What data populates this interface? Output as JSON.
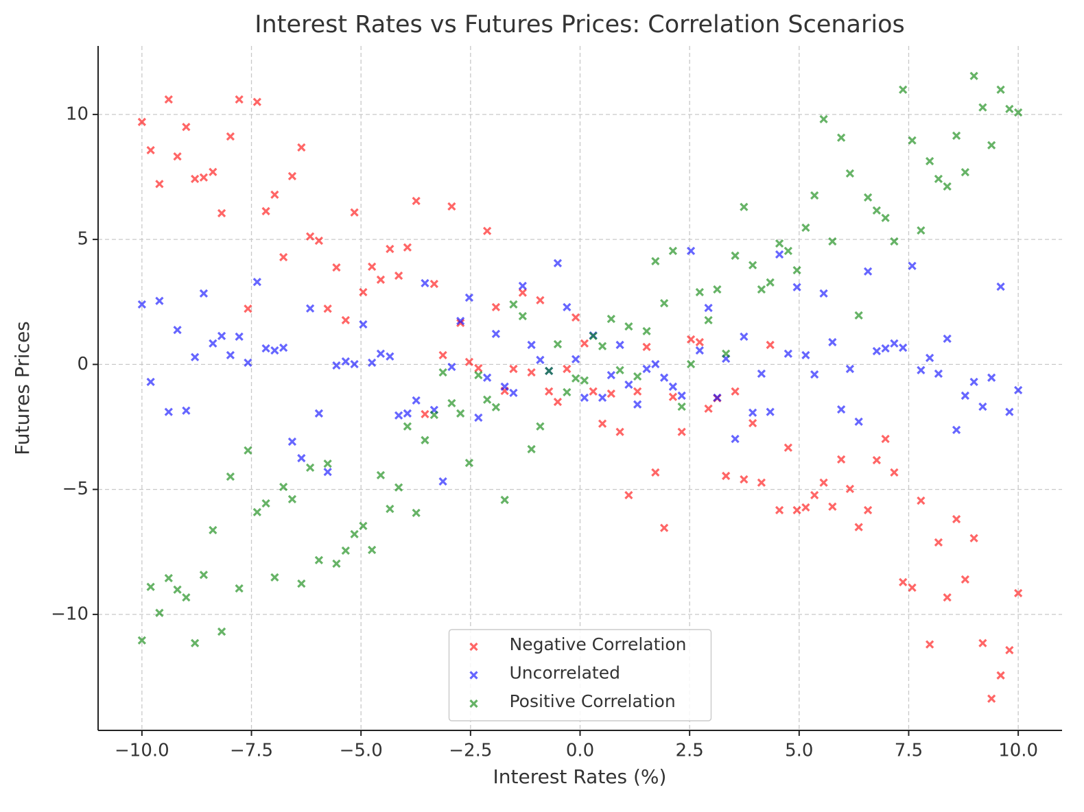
{
  "chart_data": {
    "type": "scatter",
    "title": "Interest Rates vs Futures Prices: Correlation Scenarios",
    "x_label": "Interest Rates (%)",
    "y_label": "Futures Prices",
    "x": [
      -10,
      -9.8,
      -9.6,
      -9.39,
      -9.19,
      -8.99,
      -8.79,
      -8.59,
      -8.38,
      -8.18,
      -7.98,
      -7.78,
      -7.58,
      -7.37,
      -7.17,
      -6.97,
      -6.77,
      -6.57,
      -6.36,
      -6.16,
      -5.96,
      -5.76,
      -5.56,
      -5.35,
      -5.15,
      -4.95,
      -4.75,
      -4.55,
      -4.34,
      -4.14,
      -3.94,
      -3.74,
      -3.54,
      -3.33,
      -3.13,
      -2.93,
      -2.73,
      -2.53,
      -2.32,
      -2.12,
      -1.92,
      -1.72,
      -1.52,
      -1.31,
      -1.11,
      -0.91,
      -0.71,
      -0.51,
      -0.3,
      -0.1,
      0.1,
      0.3,
      0.51,
      0.71,
      0.91,
      1.11,
      1.31,
      1.52,
      1.72,
      1.92,
      2.12,
      2.32,
      2.53,
      2.73,
      2.93,
      3.13,
      3.33,
      3.54,
      3.74,
      3.94,
      4.14,
      4.34,
      4.55,
      4.75,
      4.95,
      5.15,
      5.35,
      5.56,
      5.76,
      5.96,
      6.16,
      6.36,
      6.57,
      6.77,
      6.97,
      7.17,
      7.37,
      7.58,
      7.78,
      7.98,
      8.18,
      8.38,
      8.59,
      8.79,
      8.99,
      9.19,
      9.39,
      9.6,
      9.8,
      10
    ],
    "series": [
      {
        "name": "Negative Correlation",
        "color": "red",
        "values": [
          9.7,
          8.57,
          7.22,
          10.6,
          8.32,
          9.5,
          7.42,
          7.48,
          7.7,
          6.05,
          9.12,
          10.6,
          2.23,
          10.5,
          6.13,
          6.79,
          4.29,
          7.53,
          8.68,
          5.12,
          4.95,
          2.23,
          3.88,
          1.77,
          6.08,
          2.89,
          3.91,
          3.39,
          4.62,
          3.55,
          4.68,
          6.54,
          -1.99,
          3.22,
          0.37,
          6.32,
          1.66,
          0.1,
          -0.15,
          5.34,
          2.29,
          -1.06,
          -0.18,
          2.87,
          -0.32,
          2.57,
          -1.08,
          -1.5,
          -0.18,
          1.88,
          0.84,
          -1.08,
          -2.37,
          -1.17,
          -2.7,
          -5.23,
          -1.08,
          0.7,
          -4.32,
          -6.54,
          -1.3,
          -2.7,
          1.0,
          0.89,
          -1.77,
          -1.35,
          -4.46,
          -1.08,
          -4.6,
          -2.35,
          -4.73,
          0.78,
          -5.83,
          -3.33,
          -5.83,
          -5.72,
          -5.23,
          -4.73,
          -5.69,
          -3.8,
          -4.98,
          -6.51,
          -5.83,
          -3.83,
          -2.98,
          -4.32,
          -8.71,
          -8.93,
          -5.45,
          -11.2,
          -7.12,
          -9.32,
          -6.19,
          -8.6,
          -6.95,
          -11.15,
          -13.37,
          -12.44,
          -11.43,
          -9.15
        ]
      },
      {
        "name": "Uncorrelated",
        "color": "blue",
        "values": [
          2.4,
          -0.7,
          2.54,
          -1.9,
          1.38,
          -1.85,
          0.29,
          2.84,
          0.84,
          1.14,
          0.37,
          1.11,
          0.07,
          3.3,
          0.64,
          0.56,
          0.67,
          -3.09,
          -3.75,
          2.24,
          -1.96,
          -4.3,
          -0.04,
          0.12,
          0.01,
          1.6,
          0.07,
          0.43,
          0.32,
          -2.04,
          -1.96,
          -1.44,
          3.25,
          -1.82,
          -4.68,
          -0.1,
          1.74,
          2.67,
          -2.13,
          -0.53,
          1.22,
          -0.89,
          -1.14,
          3.14,
          0.78,
          0.18,
          -0.26,
          4.05,
          2.29,
          0.21,
          -1.33,
          1.16,
          -1.33,
          -0.43,
          0.78,
          -0.81,
          -1.6,
          -0.18,
          0.01,
          -0.53,
          -0.89,
          -1.25,
          4.54,
          0.56,
          2.26,
          -1.33,
          0.23,
          -2.98,
          1.11,
          -1.93,
          -0.37,
          -1.9,
          4.4,
          0.43,
          3.09,
          0.37,
          -0.4,
          2.84,
          0.89,
          -1.8,
          -0.18,
          -2.29,
          3.72,
          0.53,
          0.64,
          0.84,
          0.67,
          3.94,
          -0.23,
          0.26,
          -0.37,
          1.03,
          -2.62,
          -1.25,
          -0.7,
          -1.69,
          -0.53,
          3.11,
          -1.9,
          -1.03
        ]
      },
      {
        "name": "Positive Correlation",
        "color": "green",
        "values": [
          -11.04,
          -8.9,
          -9.94,
          -8.55,
          -9.01,
          -9.32,
          -11.15,
          -8.42,
          -6.63,
          -10.69,
          -4.49,
          -8.96,
          -3.44,
          -5.91,
          -5.56,
          -8.52,
          -4.9,
          -5.39,
          -8.77,
          -4.13,
          -7.83,
          -3.97,
          -7.97,
          -7.45,
          -6.79,
          -6.46,
          -7.42,
          -4.43,
          -5.78,
          -4.92,
          -2.48,
          -5.94,
          -3.03,
          -2.02,
          -0.32,
          -1.55,
          -1.96,
          -3.94,
          -0.43,
          -1.41,
          -1.71,
          -5.42,
          2.4,
          1.93,
          -3.39,
          -2.48,
          -0.26,
          0.81,
          -1.11,
          -0.56,
          -0.64,
          1.14,
          0.73,
          1.82,
          -0.23,
          1.52,
          -0.48,
          1.33,
          4.13,
          2.45,
          4.54,
          -1.69,
          0.01,
          2.89,
          1.77,
          3.0,
          0.43,
          4.35,
          6.3,
          3.97,
          3.0,
          3.28,
          4.84,
          4.54,
          3.77,
          5.47,
          6.76,
          9.81,
          4.92,
          9.07,
          7.64,
          1.96,
          6.68,
          6.16,
          5.86,
          4.92,
          10.99,
          8.96,
          5.36,
          8.13,
          7.42,
          7.12,
          9.15,
          7.69,
          11.54,
          10.28,
          8.77,
          10.99,
          10.22,
          10.08
        ]
      }
    ],
    "alpha": 0.6,
    "xlim": [
      -11,
      11
    ],
    "ylim": [
      -14.64,
      12.74
    ],
    "xticks": [
      {
        "value": -10,
        "label": "−10.0"
      },
      {
        "value": -7.5,
        "label": "−7.5"
      },
      {
        "value": -5,
        "label": "−5.0"
      },
      {
        "value": -2.5,
        "label": "−2.5"
      },
      {
        "value": 0,
        "label": "0.0"
      },
      {
        "value": 2.5,
        "label": "2.5"
      },
      {
        "value": 5,
        "label": "5.0"
      },
      {
        "value": 7.5,
        "label": "7.5"
      },
      {
        "value": 10,
        "label": "10.0"
      }
    ],
    "yticks": [
      {
        "value": -10,
        "label": "−10"
      },
      {
        "value": -5,
        "label": "−5"
      },
      0,
      5,
      10
    ],
    "grid": true,
    "legend": "lower center"
  }
}
